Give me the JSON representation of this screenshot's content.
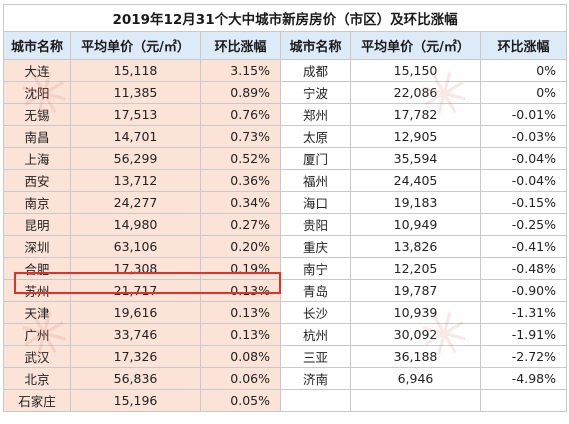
{
  "title": "2019年12月31个大中城市新房房价（市区）及环比涨幅",
  "headers": {
    "city": "城市名称",
    "price": "平均单价（元/㎡）",
    "change": "环比涨幅"
  },
  "left_rows": [
    {
      "city": "大连",
      "price": "15,118",
      "change": "3.15%"
    },
    {
      "city": "沈阳",
      "price": "11,385",
      "change": "0.89%"
    },
    {
      "city": "无锡",
      "price": "17,513",
      "change": "0.76%"
    },
    {
      "city": "南昌",
      "price": "14,701",
      "change": "0.73%"
    },
    {
      "city": "上海",
      "price": "56,299",
      "change": "0.52%"
    },
    {
      "city": "西安",
      "price": "13,712",
      "change": "0.36%"
    },
    {
      "city": "南京",
      "price": "24,277",
      "change": "0.34%"
    },
    {
      "city": "昆明",
      "price": "14,980",
      "change": "0.27%"
    },
    {
      "city": "深圳",
      "price": "63,106",
      "change": "0.20%"
    },
    {
      "city": "合肥",
      "price": "17,308",
      "change": "0.19%"
    },
    {
      "city": "苏州",
      "price": "21,717",
      "change": "0.13%"
    },
    {
      "city": "天津",
      "price": "19,616",
      "change": "0.13%"
    },
    {
      "city": "广州",
      "price": "33,746",
      "change": "0.13%"
    },
    {
      "city": "武汉",
      "price": "17,326",
      "change": "0.08%"
    },
    {
      "city": "北京",
      "price": "56,836",
      "change": "0.06%"
    },
    {
      "city": "石家庄",
      "price": "15,196",
      "change": "0.05%"
    }
  ],
  "right_rows": [
    {
      "city": "成都",
      "price": "15,150",
      "change": "0%"
    },
    {
      "city": "宁波",
      "price": "22,086",
      "change": "0%"
    },
    {
      "city": "郑州",
      "price": "17,782",
      "change": "-0.01%"
    },
    {
      "city": "太原",
      "price": "12,905",
      "change": "-0.03%"
    },
    {
      "city": "厦门",
      "price": "35,594",
      "change": "-0.04%"
    },
    {
      "city": "福州",
      "price": "24,405",
      "change": "-0.04%"
    },
    {
      "city": "海口",
      "price": "19,183",
      "change": "-0.15%"
    },
    {
      "city": "贵阳",
      "price": "10,949",
      "change": "-0.25%"
    },
    {
      "city": "重庆",
      "price": "13,826",
      "change": "-0.41%"
    },
    {
      "city": "南宁",
      "price": "12,205",
      "change": "-0.48%"
    },
    {
      "city": "青岛",
      "price": "19,787",
      "change": "-0.90%"
    },
    {
      "city": "长沙",
      "price": "10,939",
      "change": "-1.31%"
    },
    {
      "city": "杭州",
      "price": "30,092",
      "change": "-1.91%"
    },
    {
      "city": "三亚",
      "price": "36,188",
      "change": "-2.72%"
    },
    {
      "city": "济南",
      "price": "6,946",
      "change": "-4.98%"
    },
    {
      "city": "",
      "price": "",
      "change": ""
    }
  ],
  "highlighted_city": "合肥",
  "colors": {
    "header_bg": "#ddeaf7",
    "left_city_bg": "#fbe3d7",
    "highlight_border": "#e0322b"
  }
}
